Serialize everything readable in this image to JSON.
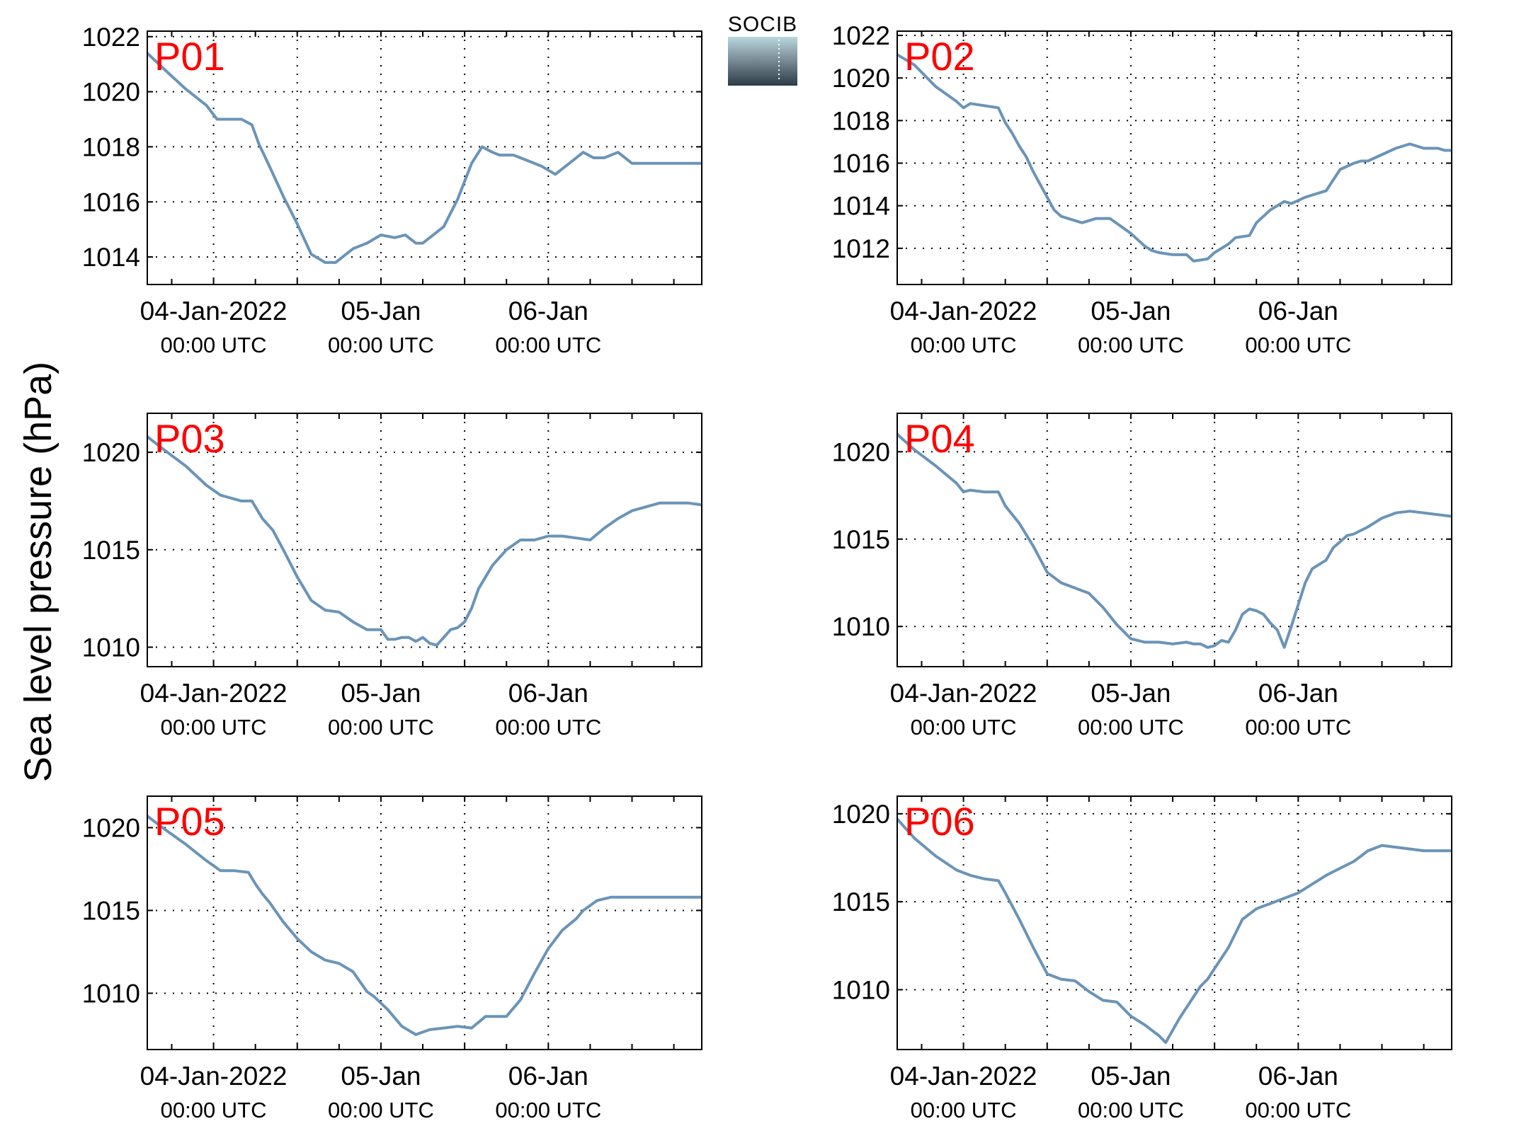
{
  "figure": {
    "ylabel": "Sea level pressure (hPa)",
    "logo_text": "SOCIB",
    "line_color": "#6a94b8",
    "label_color": "#ff0000"
  },
  "chart_data": [
    {
      "type": "line",
      "panel": "P01",
      "x_unit": "hours since 04-Jan-2022 00:00 UTC",
      "x_range": [
        -9.5,
        70
      ],
      "ylim": [
        1013,
        1022.2
      ],
      "yticks": [
        1014,
        1016,
        1018,
        1020,
        1022
      ],
      "x_tick_labels": [
        {
          "date": "04-Jan-2022",
          "time": "00:00 UTC"
        },
        {
          "date": "05-Jan",
          "time": "00:00 UTC"
        },
        {
          "date": "06-Jan",
          "time": "00:00 UTC"
        }
      ],
      "grid": true,
      "x": [
        -9.5,
        -7,
        -4,
        -1,
        0.5,
        2,
        4,
        5.5,
        6.5,
        8,
        10,
        12,
        14,
        16,
        17.5,
        19,
        20,
        22,
        24,
        26,
        27.5,
        29,
        30,
        31,
        33,
        35,
        37,
        38.5,
        40,
        41,
        43,
        45,
        47,
        49,
        51,
        53,
        54.5,
        56,
        58,
        60,
        62,
        63,
        65,
        66,
        68,
        70
      ],
      "values": [
        1021.4,
        1020.8,
        1020.1,
        1019.5,
        1019.0,
        1019.0,
        1019.0,
        1018.8,
        1018.1,
        1017.3,
        1016.2,
        1015.2,
        1014.1,
        1013.8,
        1013.8,
        1014.1,
        1014.3,
        1014.5,
        1014.8,
        1014.7,
        1014.8,
        1014.5,
        1014.5,
        1014.7,
        1015.1,
        1016.1,
        1017.4,
        1018.0,
        1017.8,
        1017.7,
        1017.7,
        1017.5,
        1017.3,
        1017.0,
        1017.4,
        1017.8,
        1017.6,
        1017.6,
        1017.8,
        1017.4,
        1017.4,
        1017.4,
        1017.4,
        1017.4,
        1017.4,
        1017.4
      ]
    },
    {
      "type": "line",
      "panel": "P02",
      "x_unit": "hours since 04-Jan-2022 00:00 UTC",
      "x_range": [
        -9.5,
        70
      ],
      "ylim": [
        1010.3,
        1022.2
      ],
      "yticks": [
        1012,
        1014,
        1016,
        1018,
        1020,
        1022
      ],
      "x_tick_labels": [
        {
          "date": "04-Jan-2022",
          "time": "00:00 UTC"
        },
        {
          "date": "05-Jan",
          "time": "00:00 UTC"
        },
        {
          "date": "06-Jan",
          "time": "00:00 UTC"
        }
      ],
      "grid": true,
      "x": [
        -9.5,
        -7,
        -4,
        -1,
        0,
        1,
        3,
        5,
        6,
        7,
        8,
        9,
        10,
        12,
        13,
        14,
        15,
        17,
        19,
        21,
        24,
        26,
        27,
        28,
        30,
        32,
        33,
        35,
        36,
        38,
        39,
        41,
        42,
        44,
        46,
        47,
        49,
        50,
        52,
        54,
        56,
        57,
        58,
        60,
        62,
        64,
        66,
        68,
        69,
        70
      ],
      "values": [
        1021.1,
        1020.6,
        1019.6,
        1018.9,
        1018.6,
        1018.8,
        1018.7,
        1018.6,
        1017.9,
        1017.4,
        1016.8,
        1016.3,
        1015.6,
        1014.4,
        1013.8,
        1013.5,
        1013.4,
        1013.2,
        1013.4,
        1013.4,
        1012.7,
        1012.1,
        1011.9,
        1011.8,
        1011.7,
        1011.7,
        1011.4,
        1011.5,
        1011.8,
        1012.2,
        1012.5,
        1012.6,
        1013.2,
        1013.8,
        1014.2,
        1014.1,
        1014.4,
        1014.5,
        1014.7,
        1015.7,
        1016.0,
        1016.1,
        1016.1,
        1016.4,
        1016.7,
        1016.9,
        1016.7,
        1016.7,
        1016.6,
        1016.6
      ]
    },
    {
      "type": "line",
      "panel": "P03",
      "x_unit": "hours since 04-Jan-2022 00:00 UTC",
      "x_range": [
        -9.5,
        70
      ],
      "ylim": [
        1009,
        1022
      ],
      "yticks": [
        1010,
        1015,
        1020
      ],
      "x_tick_labels": [
        {
          "date": "04-Jan-2022",
          "time": "00:00 UTC"
        },
        {
          "date": "05-Jan",
          "time": "00:00 UTC"
        },
        {
          "date": "06-Jan",
          "time": "00:00 UTC"
        }
      ],
      "grid": true,
      "x": [
        -9.5,
        -7,
        -4,
        -1,
        1,
        2,
        4,
        5.5,
        7,
        8.5,
        10,
        12,
        14,
        16,
        18,
        20,
        22,
        24,
        25,
        26,
        27,
        28,
        29,
        30,
        31,
        32,
        33,
        34,
        35,
        36,
        37,
        38,
        40,
        42,
        44,
        46,
        48,
        50,
        52,
        54,
        56,
        58,
        60,
        62,
        64,
        66,
        68,
        70
      ],
      "values": [
        1020.8,
        1020.1,
        1019.3,
        1018.3,
        1017.8,
        1017.7,
        1017.5,
        1017.5,
        1016.6,
        1016.0,
        1015.0,
        1013.6,
        1012.4,
        1011.9,
        1011.8,
        1011.3,
        1010.9,
        1010.9,
        1010.4,
        1010.4,
        1010.5,
        1010.5,
        1010.3,
        1010.5,
        1010.2,
        1010.1,
        1010.5,
        1010.9,
        1011.0,
        1011.3,
        1012.0,
        1013.0,
        1014.2,
        1015.0,
        1015.5,
        1015.5,
        1015.7,
        1015.7,
        1015.6,
        1015.5,
        1016.1,
        1016.6,
        1017.0,
        1017.2,
        1017.4,
        1017.4,
        1017.4,
        1017.3
      ]
    },
    {
      "type": "line",
      "panel": "P04",
      "x_unit": "hours since 04-Jan-2022 00:00 UTC",
      "x_range": [
        -9.5,
        70
      ],
      "ylim": [
        1007.7,
        1022.2
      ],
      "yticks": [
        1010,
        1015,
        1020
      ],
      "x_tick_labels": [
        {
          "date": "04-Jan-2022",
          "time": "00:00 UTC"
        },
        {
          "date": "05-Jan",
          "time": "00:00 UTC"
        },
        {
          "date": "06-Jan",
          "time": "00:00 UTC"
        }
      ],
      "grid": true,
      "x": [
        -9.5,
        -7,
        -4,
        -1,
        0,
        1,
        3,
        5,
        6,
        8,
        10,
        12,
        14,
        16,
        18,
        20,
        22,
        24,
        26,
        28,
        30,
        32,
        33,
        34,
        35,
        36,
        37,
        38,
        39,
        40,
        41,
        42,
        43,
        44,
        45,
        46,
        47,
        49,
        50,
        52,
        53,
        55,
        56,
        58,
        60,
        62,
        64,
        66,
        68,
        70
      ],
      "values": [
        1021.0,
        1020.1,
        1019.2,
        1018.2,
        1017.7,
        1017.8,
        1017.7,
        1017.7,
        1016.9,
        1015.9,
        1014.6,
        1013.1,
        1012.5,
        1012.2,
        1011.9,
        1011.1,
        1010.1,
        1009.3,
        1009.1,
        1009.1,
        1009.0,
        1009.1,
        1009.0,
        1009.0,
        1008.8,
        1008.9,
        1009.2,
        1009.1,
        1009.8,
        1010.7,
        1011.0,
        1010.9,
        1010.7,
        1010.2,
        1009.8,
        1008.8,
        1010.0,
        1012.5,
        1013.3,
        1013.8,
        1014.5,
        1015.2,
        1015.3,
        1015.7,
        1016.2,
        1016.5,
        1016.6,
        1016.5,
        1016.4,
        1016.3
      ]
    },
    {
      "type": "line",
      "panel": "P05",
      "x_unit": "hours since 04-Jan-2022 00:00 UTC",
      "x_range": [
        -9.5,
        70
      ],
      "ylim": [
        1006.6,
        1021.9
      ],
      "yticks": [
        1010,
        1015,
        1020
      ],
      "x_tick_labels": [
        {
          "date": "04-Jan-2022",
          "time": "00:00 UTC"
        },
        {
          "date": "05-Jan",
          "time": "00:00 UTC"
        },
        {
          "date": "06-Jan",
          "time": "00:00 UTC"
        }
      ],
      "grid": true,
      "x": [
        -9.5,
        -7,
        -4,
        -1,
        1,
        3,
        5,
        6,
        7,
        8,
        10,
        12,
        14,
        16,
        18,
        20,
        22,
        23,
        25,
        27,
        29,
        31,
        33,
        35,
        37,
        39,
        41,
        42,
        44,
        46,
        48,
        50,
        52,
        53,
        55,
        57,
        59,
        61,
        63,
        65,
        67,
        68,
        70
      ],
      "values": [
        1020.7,
        1019.9,
        1019.0,
        1018.0,
        1017.4,
        1017.4,
        1017.3,
        1016.6,
        1016.0,
        1015.5,
        1014.3,
        1013.3,
        1012.5,
        1012.0,
        1011.8,
        1011.3,
        1010.1,
        1009.8,
        1009.0,
        1008.0,
        1007.5,
        1007.8,
        1007.9,
        1008.0,
        1007.9,
        1008.6,
        1008.6,
        1008.6,
        1009.6,
        1011.2,
        1012.7,
        1013.8,
        1014.5,
        1015.0,
        1015.6,
        1015.8,
        1015.8,
        1015.8,
        1015.8,
        1015.8,
        1015.8,
        1015.8,
        1015.8
      ]
    },
    {
      "type": "line",
      "panel": "P06",
      "x_unit": "hours since 04-Jan-2022 00:00 UTC",
      "x_range": [
        -9.5,
        70
      ],
      "ylim": [
        1006.6,
        1021
      ],
      "yticks": [
        1010,
        1015,
        1020
      ],
      "x_tick_labels": [
        {
          "date": "04-Jan-2022",
          "time": "00:00 UTC"
        },
        {
          "date": "05-Jan",
          "time": "00:00 UTC"
        },
        {
          "date": "06-Jan",
          "time": "00:00 UTC"
        }
      ],
      "grid": true,
      "x": [
        -9.5,
        -7,
        -4,
        -1,
        1,
        3,
        5,
        6,
        8,
        10,
        12,
        14,
        16,
        18,
        20,
        22,
        24,
        26,
        28,
        29,
        31,
        33,
        34,
        35,
        36,
        38,
        40,
        42,
        44,
        46,
        48,
        50,
        52,
        54,
        56,
        58,
        60,
        62,
        64,
        66,
        68,
        70
      ],
      "values": [
        1019.7,
        1018.6,
        1017.6,
        1016.8,
        1016.5,
        1016.3,
        1016.2,
        1015.5,
        1014.0,
        1012.4,
        1010.9,
        1010.6,
        1010.5,
        1009.9,
        1009.4,
        1009.3,
        1008.5,
        1008.0,
        1007.4,
        1007.0,
        1008.4,
        1009.6,
        1010.2,
        1010.6,
        1011.2,
        1012.4,
        1014.0,
        1014.6,
        1014.9,
        1015.2,
        1015.5,
        1016.0,
        1016.5,
        1016.9,
        1017.3,
        1017.9,
        1018.2,
        1018.1,
        1018.0,
        1017.9,
        1017.9,
        1017.9
      ]
    }
  ]
}
